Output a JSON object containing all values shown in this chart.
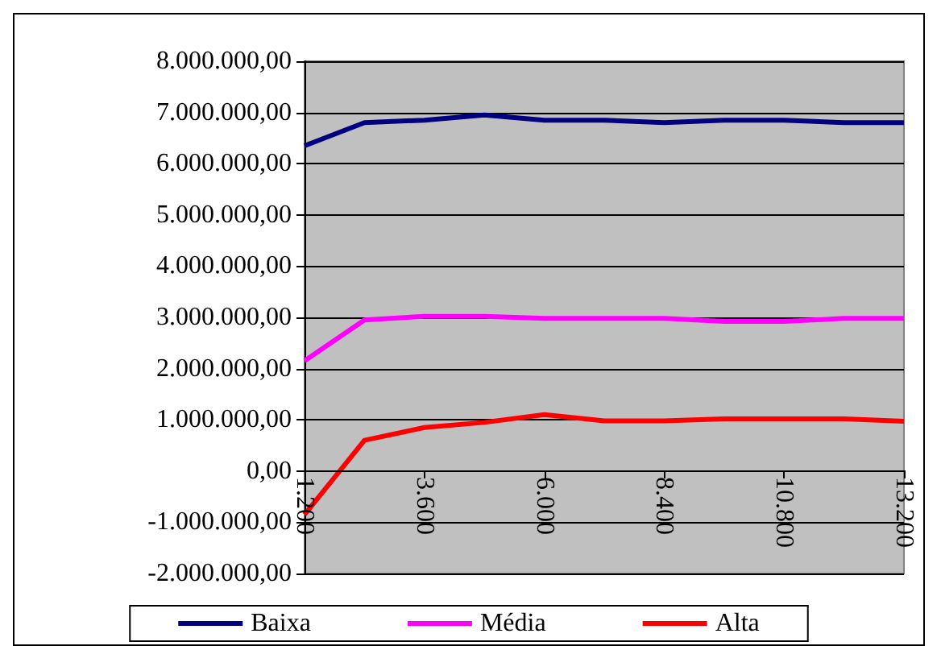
{
  "chart_data": {
    "type": "line",
    "x": [
      1200,
      2400,
      3600,
      4800,
      6000,
      7200,
      8400,
      9600,
      10800,
      12000,
      13200
    ],
    "series": [
      {
        "name": "Baixa",
        "color": "#000080",
        "values": [
          6350000,
          6800000,
          6850000,
          6950000,
          6850000,
          6850000,
          6800000,
          6850000,
          6850000,
          6800000,
          6800000
        ]
      },
      {
        "name": "Média",
        "color": "#ff00ff",
        "values": [
          2150000,
          2950000,
          3020000,
          3020000,
          2980000,
          2980000,
          2980000,
          2920000,
          2920000,
          2980000,
          2980000
        ]
      },
      {
        "name": "Alta",
        "color": "#ff0000",
        "values": [
          -850000,
          600000,
          850000,
          950000,
          1100000,
          980000,
          980000,
          1020000,
          1020000,
          1020000,
          970000
        ]
      }
    ],
    "xlim": [
      1200,
      13200
    ],
    "xticks": [
      {
        "value": 1200,
        "label": "1.200"
      },
      {
        "value": 3600,
        "label": "3.600"
      },
      {
        "value": 6000,
        "label": "6.000"
      },
      {
        "value": 8400,
        "label": "8.400"
      },
      {
        "value": 10800,
        "label": "10.800"
      },
      {
        "value": 13200,
        "label": "13.200"
      }
    ],
    "ylim": [
      -2000000,
      8000000
    ],
    "yticks": [
      {
        "value": -2000000,
        "label": "-2.000.000,00"
      },
      {
        "value": -1000000,
        "label": "-1.000.000,00"
      },
      {
        "value": 0,
        "label": "0,00"
      },
      {
        "value": 1000000,
        "label": "1.000.000,00"
      },
      {
        "value": 2000000,
        "label": "2.000.000,00"
      },
      {
        "value": 3000000,
        "label": "3.000.000,00"
      },
      {
        "value": 4000000,
        "label": "4.000.000,00"
      },
      {
        "value": 5000000,
        "label": "5.000.000,00"
      },
      {
        "value": 6000000,
        "label": "6.000.000,00"
      },
      {
        "value": 7000000,
        "label": "7.000.000,00"
      },
      {
        "value": 8000000,
        "label": "8.000.000,00"
      }
    ],
    "grid": "y",
    "legend": "bottom",
    "marker": "none",
    "line_style": "solid"
  }
}
